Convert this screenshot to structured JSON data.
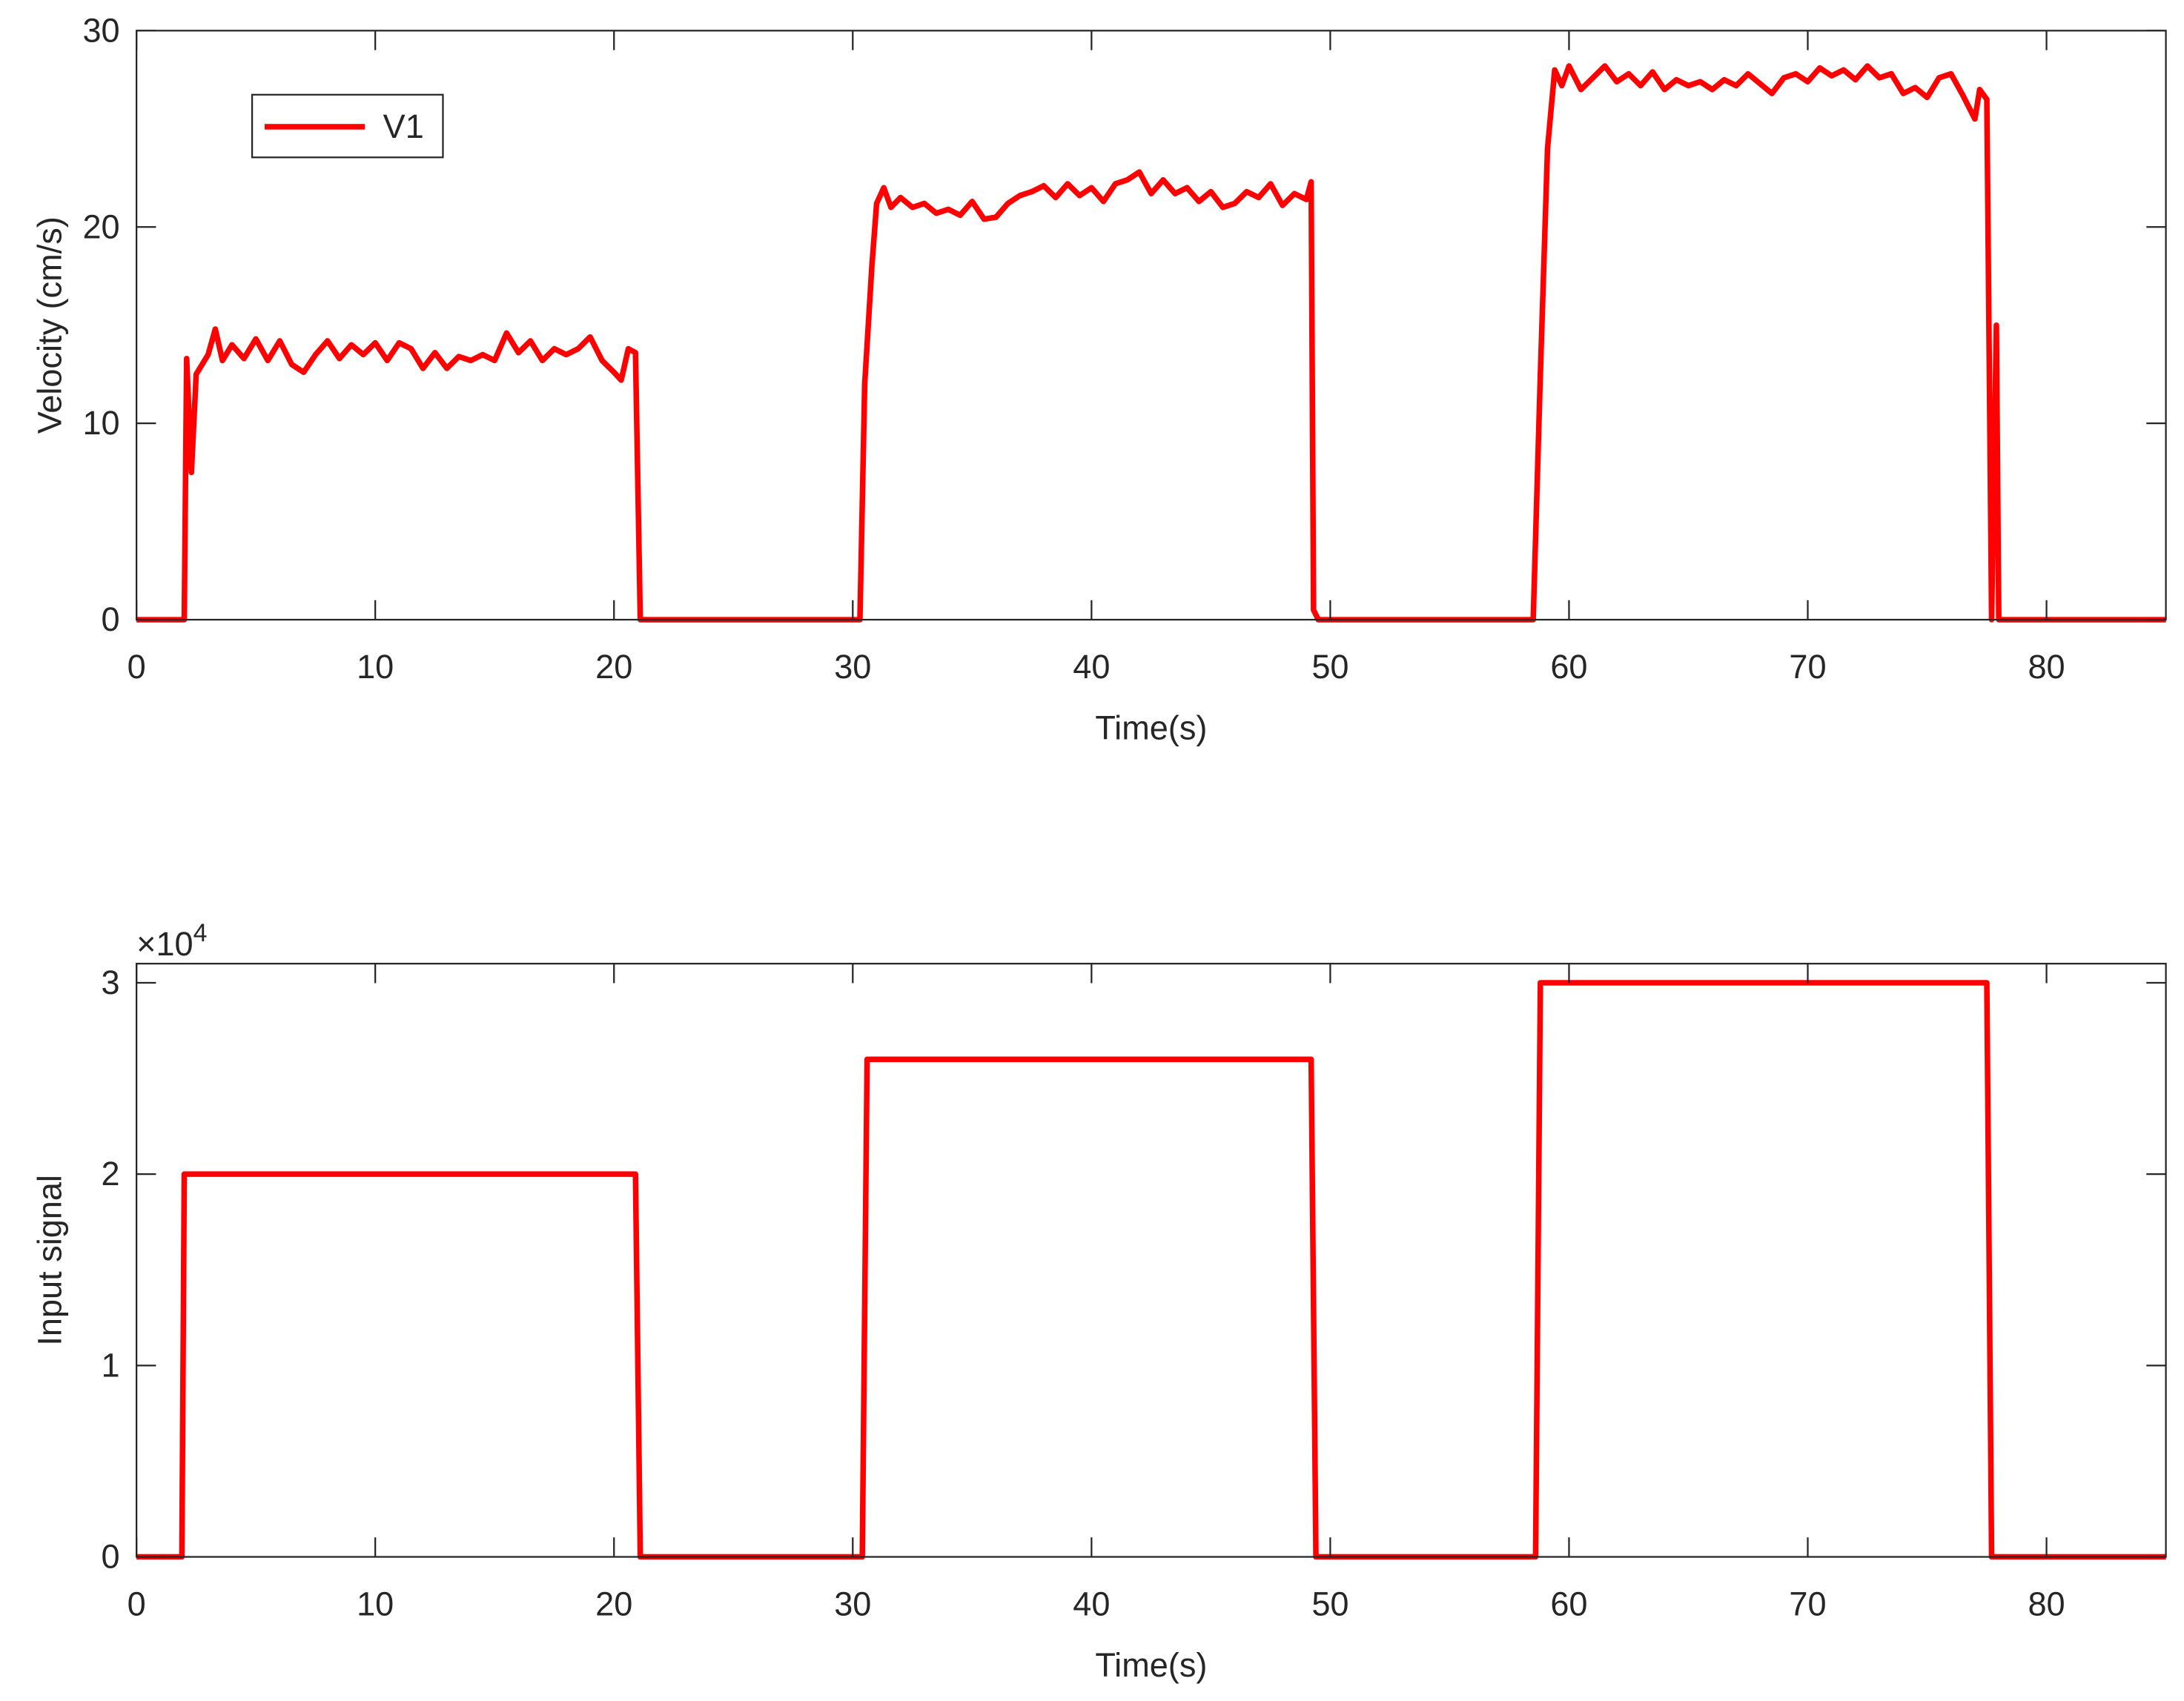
{
  "chart_data": [
    {
      "type": "line",
      "xlabel": "Time(s)",
      "ylabel": "Velocity (cm/s)",
      "xlim": [
        0,
        85
      ],
      "ylim": [
        0,
        30
      ],
      "xticks": [
        0,
        10,
        20,
        30,
        40,
        50,
        60,
        70,
        80
      ],
      "yticks": [
        0,
        10,
        20,
        30
      ],
      "legend": "upper left",
      "x": [
        0,
        2.0,
        2.1,
        2.3,
        2.5,
        3,
        3.3,
        3.6,
        4,
        4.5,
        5,
        5.5,
        6,
        6.5,
        7,
        7.5,
        8,
        8.5,
        9,
        9.5,
        10,
        10.5,
        11,
        11.5,
        12,
        12.5,
        13,
        13.5,
        14,
        14.5,
        15,
        15.5,
        16,
        16.5,
        17,
        17.5,
        18,
        18.5,
        19,
        19.5,
        20,
        20.3,
        20.6,
        20.9,
        21.1,
        30.3,
        30.5,
        30.8,
        31,
        31.3,
        31.6,
        32,
        32.5,
        33,
        33.5,
        34,
        34.5,
        35,
        35.5,
        36,
        36.5,
        37,
        37.5,
        38,
        38.5,
        39,
        39.5,
        40,
        40.5,
        41,
        41.5,
        42,
        42.5,
        43,
        43.5,
        44,
        44.5,
        45,
        45.5,
        46,
        46.5,
        47,
        47.5,
        48,
        48.5,
        49,
        49.2,
        49.3,
        49.5,
        58.5,
        58.8,
        59.1,
        59.4,
        59.7,
        60,
        60.5,
        61,
        61.5,
        62,
        62.5,
        63,
        63.5,
        64,
        64.5,
        65,
        65.5,
        66,
        66.5,
        67,
        67.5,
        68,
        68.5,
        69,
        69.5,
        70,
        70.5,
        71,
        71.5,
        72,
        72.5,
        73,
        73.5,
        74,
        74.5,
        75,
        75.5,
        76,
        76.5,
        77,
        77.2,
        77.5,
        77.7,
        77.9,
        78.0,
        85
      ],
      "series": [
        {
          "name": "V1",
          "color": "#ff0000",
          "values": [
            0,
            0,
            13.3,
            7.5,
            12.5,
            13.5,
            14.8,
            13.2,
            14,
            13.3,
            14.3,
            13.2,
            14.2,
            13,
            12.6,
            13.5,
            14.2,
            13.3,
            14,
            13.5,
            14.1,
            13.2,
            14.1,
            13.8,
            12.8,
            13.6,
            12.8,
            13.4,
            13.2,
            13.5,
            13.2,
            14.6,
            13.6,
            14.2,
            13.2,
            13.8,
            13.5,
            13.8,
            14.4,
            13.2,
            12.6,
            12.2,
            13.8,
            13.6,
            0,
            0,
            12,
            18,
            21.2,
            22,
            21,
            21.5,
            21,
            21.2,
            20.7,
            20.9,
            20.6,
            21.3,
            20.4,
            20.5,
            21.2,
            21.6,
            21.8,
            22.1,
            21.5,
            22.2,
            21.6,
            22,
            21.3,
            22.2,
            22.4,
            22.8,
            21.7,
            22.4,
            21.7,
            22,
            21.3,
            21.8,
            21,
            21.2,
            21.8,
            21.5,
            22.2,
            21.1,
            21.7,
            21.4,
            22.3,
            0.5,
            0,
            0,
            12.5,
            24,
            28,
            27.2,
            28.2,
            27,
            27.6,
            28.2,
            27.4,
            27.8,
            27.2,
            27.9,
            27,
            27.5,
            27.2,
            27.4,
            27.0,
            27.5,
            27.2,
            27.8,
            27.3,
            26.8,
            27.6,
            27.8,
            27.4,
            28.1,
            27.7,
            28,
            27.5,
            28.2,
            27.6,
            27.8,
            26.8,
            27.1,
            26.6,
            27.6,
            27.8,
            26.7,
            25.5,
            27,
            26.5,
            0,
            15,
            0,
            0
          ]
        }
      ]
    },
    {
      "type": "line",
      "xlabel": "Time(s)",
      "ylabel": "Input signal",
      "multiplier": {
        "base": "×10",
        "exponent": "4"
      },
      "xlim": [
        0,
        85
      ],
      "ylim": [
        0,
        31000
      ],
      "xticks": [
        0,
        10,
        20,
        30,
        40,
        50,
        60,
        70,
        80
      ],
      "yticks": [
        0,
        {
          "value": 10000,
          "label": "1"
        },
        {
          "value": 20000,
          "label": "2"
        },
        {
          "value": 30000,
          "label": "3"
        }
      ],
      "x": [
        0,
        1.9,
        2.0,
        20.9,
        21.1,
        30.4,
        30.6,
        49.2,
        49.4,
        58.6,
        58.8,
        77.5,
        77.7,
        85
      ],
      "series": [
        {
          "color": "#ff0000",
          "values": [
            0,
            0,
            20000,
            20000,
            0,
            0,
            26000,
            26000,
            0,
            0,
            30000,
            30000,
            0,
            0
          ]
        }
      ]
    }
  ]
}
